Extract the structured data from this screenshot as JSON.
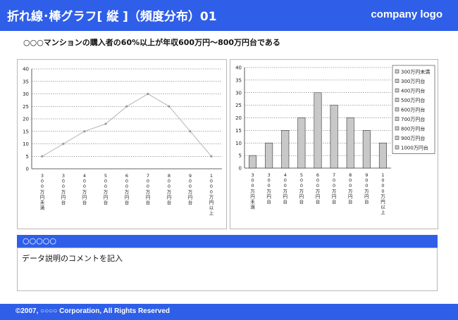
{
  "header": {
    "title": "折れ線･棒グラフ[ 縦 ]（頻度分布）01",
    "logo": "company logo"
  },
  "subtitle": "○○○マンションの購入者の60%以上が年収600万円～800万円台である",
  "note": {
    "heading": "○○○○○",
    "body": "データ説明のコメントを記入"
  },
  "footer": {
    "copyright": "©2007, ○○○○ Corporation, All Rights Reserved"
  },
  "colors": {
    "brand": "#2f5fe8",
    "bar_fill": "#c8c8c8",
    "line": "#c0c0c0"
  },
  "chart_data": [
    {
      "type": "line",
      "categories": [
        "300万円未満",
        "300万円台",
        "400万円台",
        "500万円台",
        "600万円台",
        "700万円台",
        "800万円台",
        "900万円台",
        "1000万円以上"
      ],
      "values": [
        5,
        10,
        15,
        18,
        25,
        30,
        25,
        15,
        5
      ],
      "ylim": [
        0,
        40
      ],
      "yticks": [
        0,
        5,
        10,
        15,
        20,
        25,
        30,
        35,
        40
      ],
      "grid": true
    },
    {
      "type": "bar",
      "categories": [
        "300万円未満",
        "300万円台",
        "400万円台",
        "500万円台",
        "600万円台",
        "700万円台",
        "800万円台",
        "900万円台",
        "1000万円以上"
      ],
      "values": [
        5,
        10,
        15,
        20,
        30,
        25,
        20,
        15,
        10
      ],
      "ylim": [
        0,
        40
      ],
      "yticks": [
        0,
        5,
        10,
        15,
        20,
        25,
        30,
        35,
        40
      ],
      "grid": true,
      "legend_position": "right",
      "legend": [
        "300万円未満",
        "300万円台",
        "400万円台",
        "500万円台",
        "600万円台",
        "700万円台",
        "800万円台",
        "900万円台",
        "1000万円台"
      ]
    }
  ]
}
